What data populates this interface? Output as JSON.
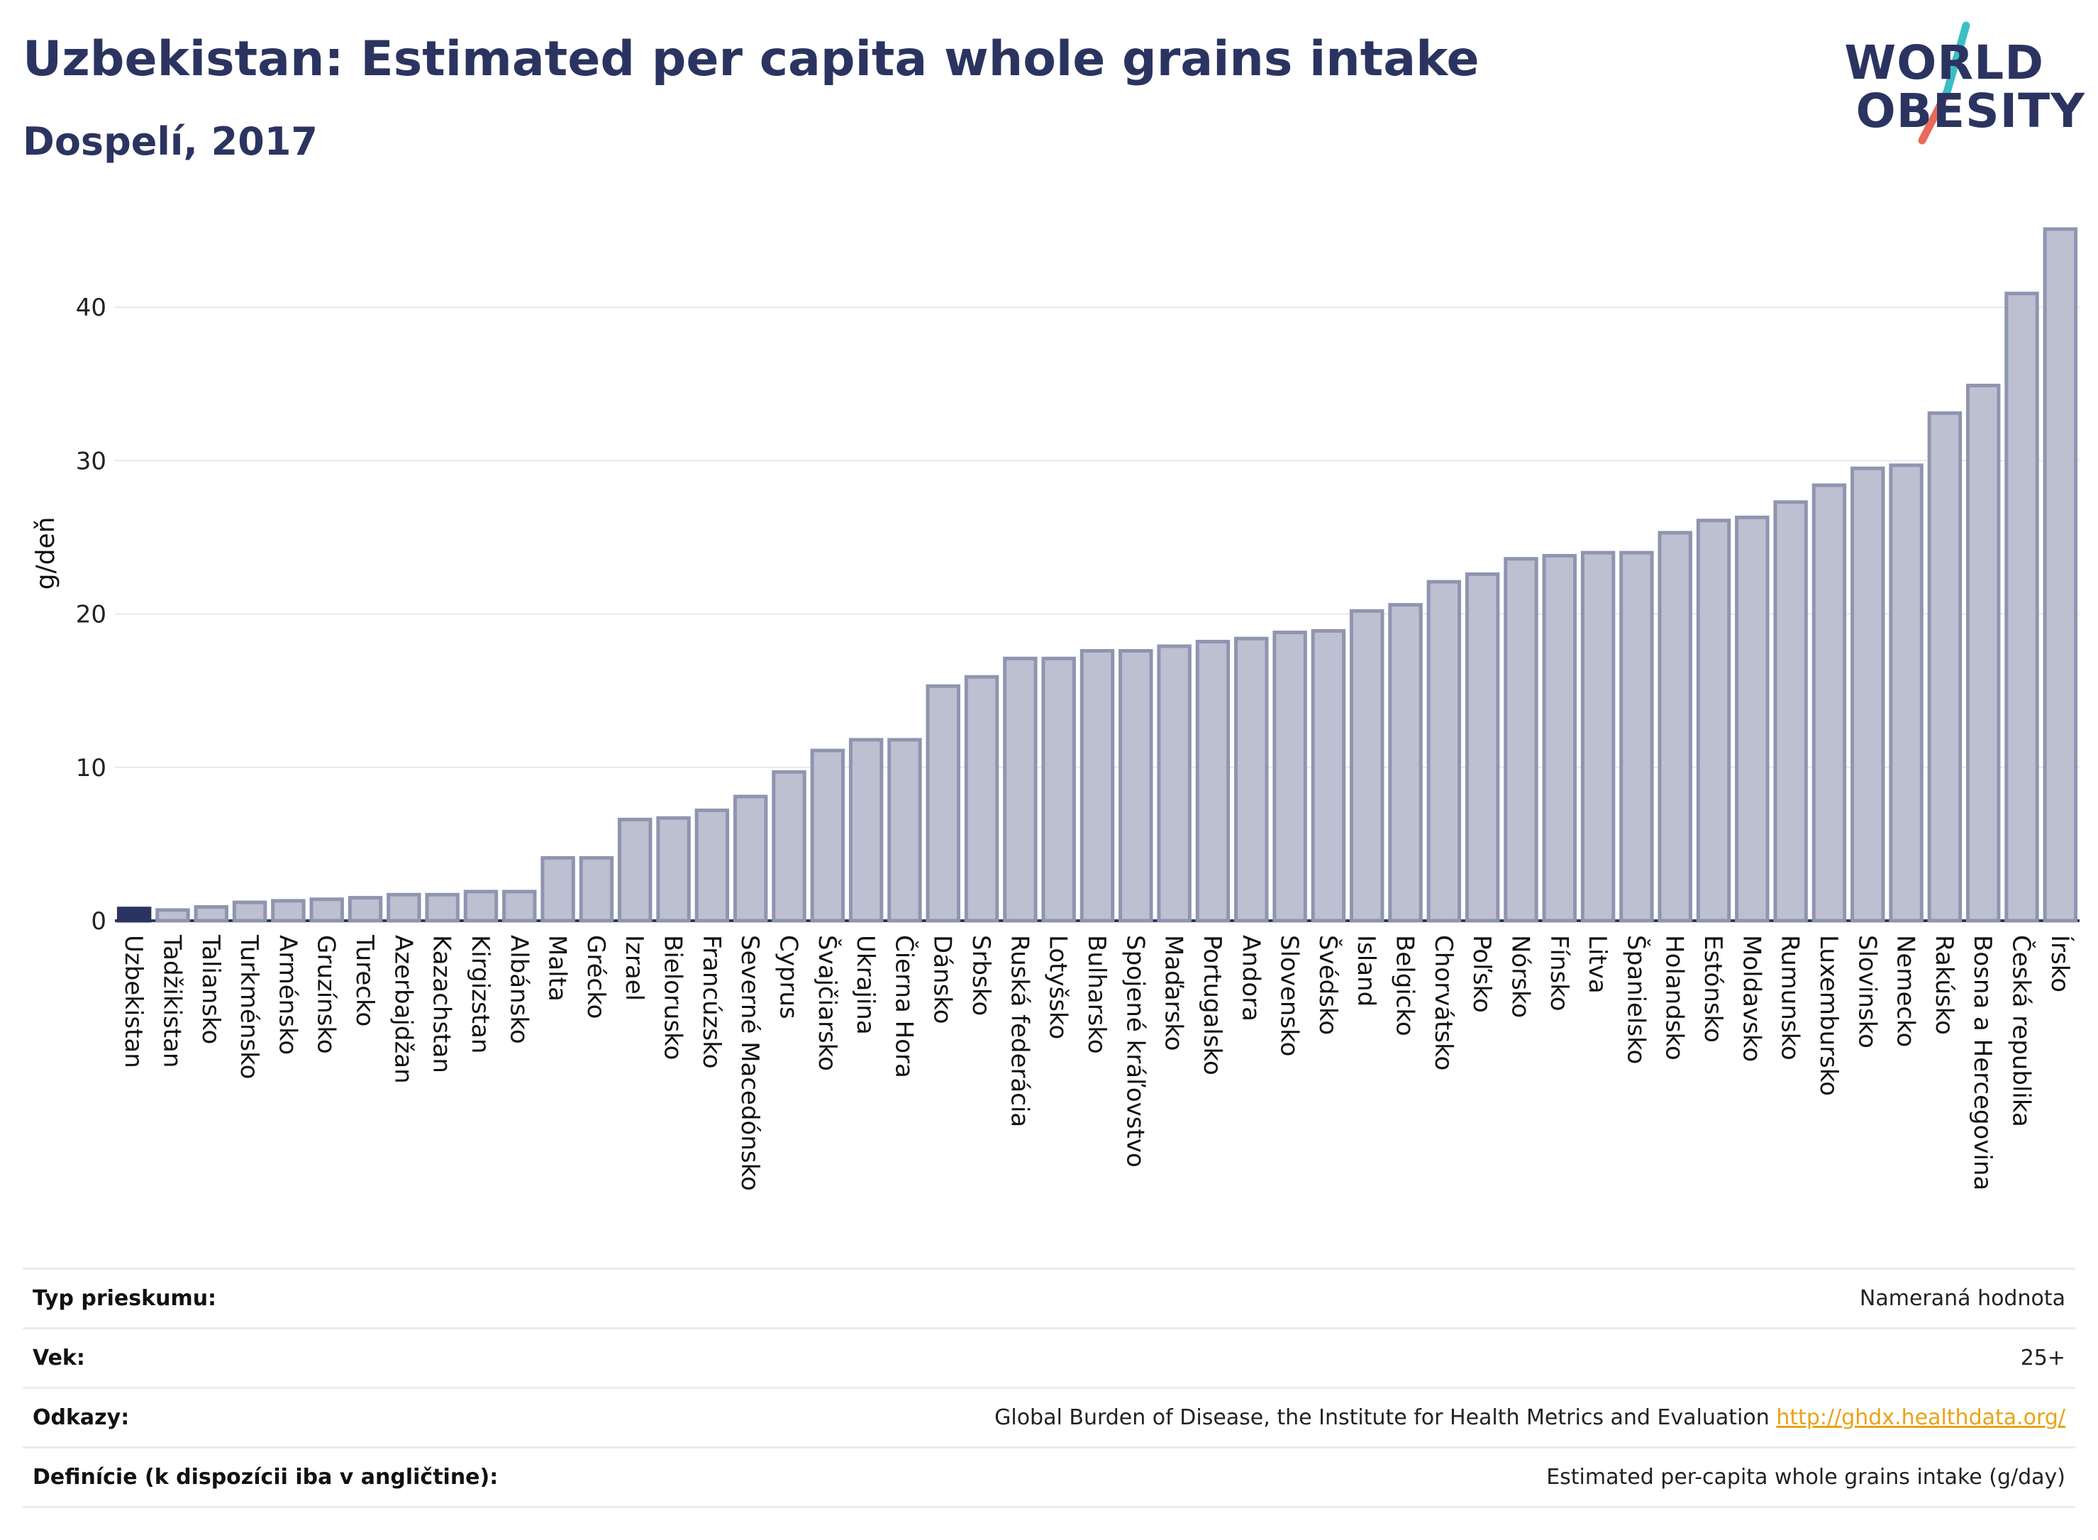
{
  "header": {
    "title": "Uzbekistan: Estimated per capita whole grains intake",
    "subtitle": "Dospelí, 2017"
  },
  "logo": {
    "line1": "WORLD",
    "line2": "OBESITY",
    "colors": {
      "text": "#2b3460",
      "stroke_top": "#3bbfc4",
      "stroke_bottom": "#e86a5a"
    }
  },
  "chart_data": {
    "type": "bar",
    "title": "Uzbekistan: Estimated per capita whole grains intake",
    "subtitle": "Dospelí, 2017",
    "xlabel": "",
    "ylabel": "g/deň",
    "ylim": [
      0,
      46
    ],
    "yticks": [
      0,
      10,
      20,
      30,
      40
    ],
    "grid": true,
    "highlight": "Uzbekistan",
    "colors": {
      "highlight": "#2b3460",
      "bar_fill": "#bcc0d0",
      "bar_stroke": "#8f95b0"
    },
    "categories": [
      "Uzbekistan",
      "Tadžikistan",
      "Taliansko",
      "Turkménsko",
      "Arménsko",
      "Gruzínsko",
      "Turecko",
      "Azerbajdžan",
      "Kazachstan",
      "Kirgizstan",
      "Albánsko",
      "Malta",
      "Grécko",
      "Izrael",
      "Bielorusko",
      "Francúzsko",
      "Severné Macedónsko",
      "Cyprus",
      "Švajčiarsko",
      "Ukrajina",
      "Čierna Hora",
      "Dánsko",
      "Srbsko",
      "Ruská federácia",
      "Lotyšsko",
      "Bulharsko",
      "Spojené kráľovstvo",
      "Maďarsko",
      "Portugalsko",
      "Andora",
      "Slovensko",
      "Švédsko",
      "Island",
      "Belgicko",
      "Chorvátsko",
      "Poľsko",
      "Nórsko",
      "Fínsko",
      "Litva",
      "Španielsko",
      "Holandsko",
      "Estónsko",
      "Moldavsko",
      "Rumunsko",
      "Luxembursko",
      "Slovinsko",
      "Nemecko",
      "Rakúsko",
      "Bosna a Hercegovina",
      "Česká republika",
      "Írsko"
    ],
    "values": [
      0.8,
      0.7,
      0.9,
      1.2,
      1.3,
      1.4,
      1.5,
      1.7,
      1.7,
      1.9,
      1.9,
      4.1,
      4.1,
      6.6,
      6.7,
      7.2,
      8.1,
      9.7,
      11.1,
      11.8,
      11.8,
      15.3,
      15.9,
      17.1,
      17.1,
      17.6,
      17.6,
      17.9,
      18.2,
      18.4,
      18.8,
      18.9,
      20.2,
      20.6,
      22.1,
      22.6,
      23.6,
      23.8,
      24.0,
      24.0,
      25.3,
      26.1,
      26.3,
      27.3,
      28.4,
      29.5,
      29.7,
      33.1,
      34.9,
      40.9,
      45.1
    ]
  },
  "info": {
    "rows": [
      {
        "key": "Typ prieskumu:",
        "value": "Nameraná hodnota"
      },
      {
        "key": "Vek:",
        "value": "25+"
      },
      {
        "key": "Odkazy:",
        "value": "Global Burden of Disease, the Institute for Health Metrics and Evaluation",
        "link": "http://ghdx.healthdata.org/"
      },
      {
        "key": "Definície (k dispozícii iba v angličtine):",
        "value": "Estimated per-capita whole grains intake (g/day)"
      }
    ]
  }
}
